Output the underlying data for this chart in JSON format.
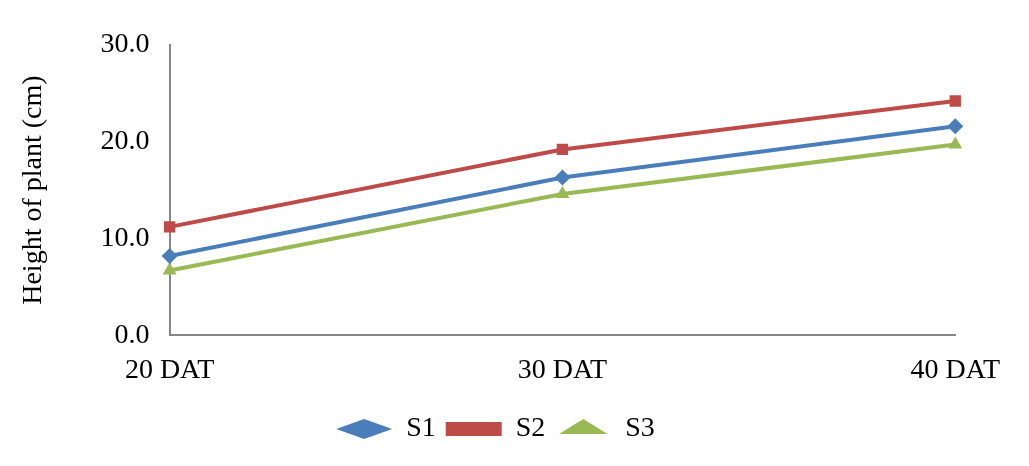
{
  "chart_data": {
    "type": "line",
    "ylabel": "Height of plant (cm)",
    "categories": [
      "20 DAT",
      "30 DAT",
      "40 DAT"
    ],
    "series": [
      {
        "name": "S1",
        "color": "#4a7ebb",
        "marker": "diamond",
        "values": [
          8.2,
          16.3,
          21.6
        ]
      },
      {
        "name": "S2",
        "color": "#be4b48",
        "marker": "square",
        "values": [
          11.2,
          19.2,
          24.2
        ]
      },
      {
        "name": "S3",
        "color": "#98b954",
        "marker": "triangle",
        "values": [
          6.7,
          14.6,
          19.7
        ]
      }
    ],
    "ylim": [
      0,
      30
    ],
    "yticks": [
      {
        "value": 0,
        "label": "0.0"
      },
      {
        "value": 10,
        "label": "10.0"
      },
      {
        "value": 20,
        "label": "20.0"
      },
      {
        "value": 30,
        "label": "30.0"
      }
    ],
    "grid": false,
    "legend": "bottom",
    "line_style": "solid"
  }
}
